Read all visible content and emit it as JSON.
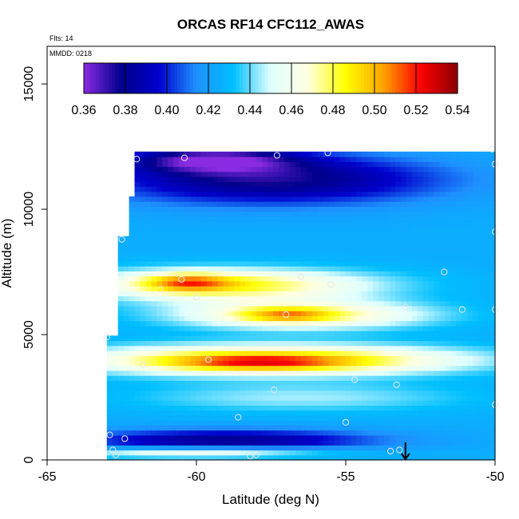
{
  "chart_data": {
    "type": "heatmap",
    "title": "ORCAS RF14 CFC112_AWAS",
    "annotations": [
      "Flts: 14",
      "MMDD: 0218"
    ],
    "xlabel": "Latitude (deg N)",
    "ylabel": "Altitude (m)",
    "xlim": [
      -65,
      -50
    ],
    "ylim": [
      0,
      16500
    ],
    "x_ticks": [
      -65,
      -60,
      -55,
      -50
    ],
    "x_tick_labels": [
      "-65",
      "-60",
      "-55",
      "-50"
    ],
    "y_ticks": [
      0,
      5000,
      10000,
      15000
    ],
    "y_tick_labels": [
      "0",
      "5000",
      "10000",
      "15000"
    ],
    "colorbar": {
      "min": 0.36,
      "max": 0.54,
      "ticks": [
        0.36,
        0.38,
        0.4,
        0.42,
        0.44,
        0.46,
        0.48,
        0.5,
        0.52,
        0.54
      ],
      "tick_labels": [
        "0.36",
        "0.38",
        "0.40",
        "0.42",
        "0.44",
        "0.46",
        "0.48",
        "0.50",
        "0.52",
        "0.54"
      ],
      "colors": [
        "#8a2be2",
        "#00008b",
        "#0000cd",
        "#1e90ff",
        "#00bfff",
        "#e0ffff",
        "#ffffe0",
        "#ffff00",
        "#ffa500",
        "#ff0000",
        "#8b0000"
      ],
      "placement": "top-inside"
    },
    "domain_outline": [
      [
        -63.0,
        0
      ],
      [
        -63.0,
        5000
      ],
      [
        -62.7,
        5000
      ],
      [
        -62.7,
        8900
      ],
      [
        -62.3,
        8900
      ],
      [
        -62.3,
        10600
      ],
      [
        -62.1,
        10600
      ],
      [
        -62.1,
        12300
      ],
      [
        -50.0,
        12300
      ],
      [
        -50.0,
        0
      ]
    ],
    "background_value": 0.425,
    "features": [
      {
        "name": "upper-low",
        "x": -57.5,
        "y": 11200,
        "sx": 4.0,
        "sy": 700,
        "amp": -0.05
      },
      {
        "name": "top-min",
        "x": -59.5,
        "y": 12000,
        "sx": 2.0,
        "sy": 350,
        "amp": -0.05
      },
      {
        "name": "high-band",
        "x": -59.0,
        "y": 7000,
        "sx": 3.5,
        "sy": 450,
        "amp": 0.06
      },
      {
        "name": "high-core",
        "x": -60.3,
        "y": 7100,
        "sx": 1.0,
        "sy": 250,
        "amp": 0.04
      },
      {
        "name": "mid-band",
        "x": -56.5,
        "y": 5800,
        "sx": 3.0,
        "sy": 400,
        "amp": 0.055
      },
      {
        "name": "mid-core",
        "x": -57.0,
        "y": 5800,
        "sx": 1.0,
        "sy": 200,
        "amp": 0.03
      },
      {
        "name": "low-band",
        "x": -57.5,
        "y": 4000,
        "sx": 4.5,
        "sy": 420,
        "amp": 0.075
      },
      {
        "name": "low-core",
        "x": -58.0,
        "y": 3900,
        "sx": 2.0,
        "sy": 200,
        "amp": 0.03
      },
      {
        "name": "light-band",
        "x": -56.5,
        "y": 2500,
        "sx": 4.0,
        "sy": 400,
        "amp": 0.02
      },
      {
        "name": "bottom-low",
        "x": -59.0,
        "y": 800,
        "sx": 3.5,
        "sy": 300,
        "amp": -0.045
      },
      {
        "name": "surface-high",
        "x": -60.0,
        "y": 300,
        "sx": 3.0,
        "sy": 150,
        "amp": 0.04
      }
    ],
    "sample_points": [
      [
        -62.0,
        12000
      ],
      [
        -60.4,
        12050
      ],
      [
        -57.3,
        12150
      ],
      [
        -55.6,
        12250
      ],
      [
        -50.1,
        12400
      ],
      [
        -50.0,
        11800
      ],
      [
        -62.5,
        8800
      ],
      [
        -50.0,
        9100
      ],
      [
        -60.5,
        7200
      ],
      [
        -56.5,
        7300
      ],
      [
        -55.5,
        7000
      ],
      [
        -51.7,
        7500
      ],
      [
        -61.2,
        6800
      ],
      [
        -60.0,
        6500
      ],
      [
        -57.0,
        5800
      ],
      [
        -53.0,
        6100
      ],
      [
        -51.1,
        6000
      ],
      [
        -50.0,
        6000
      ],
      [
        -63.0,
        4900
      ],
      [
        -61.8,
        3800
      ],
      [
        -59.6,
        4000
      ],
      [
        -57.4,
        2800
      ],
      [
        -54.7,
        3200
      ],
      [
        -53.3,
        3000
      ],
      [
        -50.6,
        4000
      ],
      [
        -50.0,
        2200
      ],
      [
        -58.6,
        1700
      ],
      [
        -55.0,
        1500
      ],
      [
        -62.9,
        1000
      ],
      [
        -62.4,
        850
      ],
      [
        -62.8,
        400
      ],
      [
        -62.7,
        200
      ],
      [
        -58.2,
        150
      ],
      [
        -58.0,
        200
      ],
      [
        -53.5,
        350
      ],
      [
        -53.2,
        400
      ]
    ],
    "arrow_marker": {
      "x": -53.0,
      "y_from": 700,
      "y_to": 0
    }
  }
}
